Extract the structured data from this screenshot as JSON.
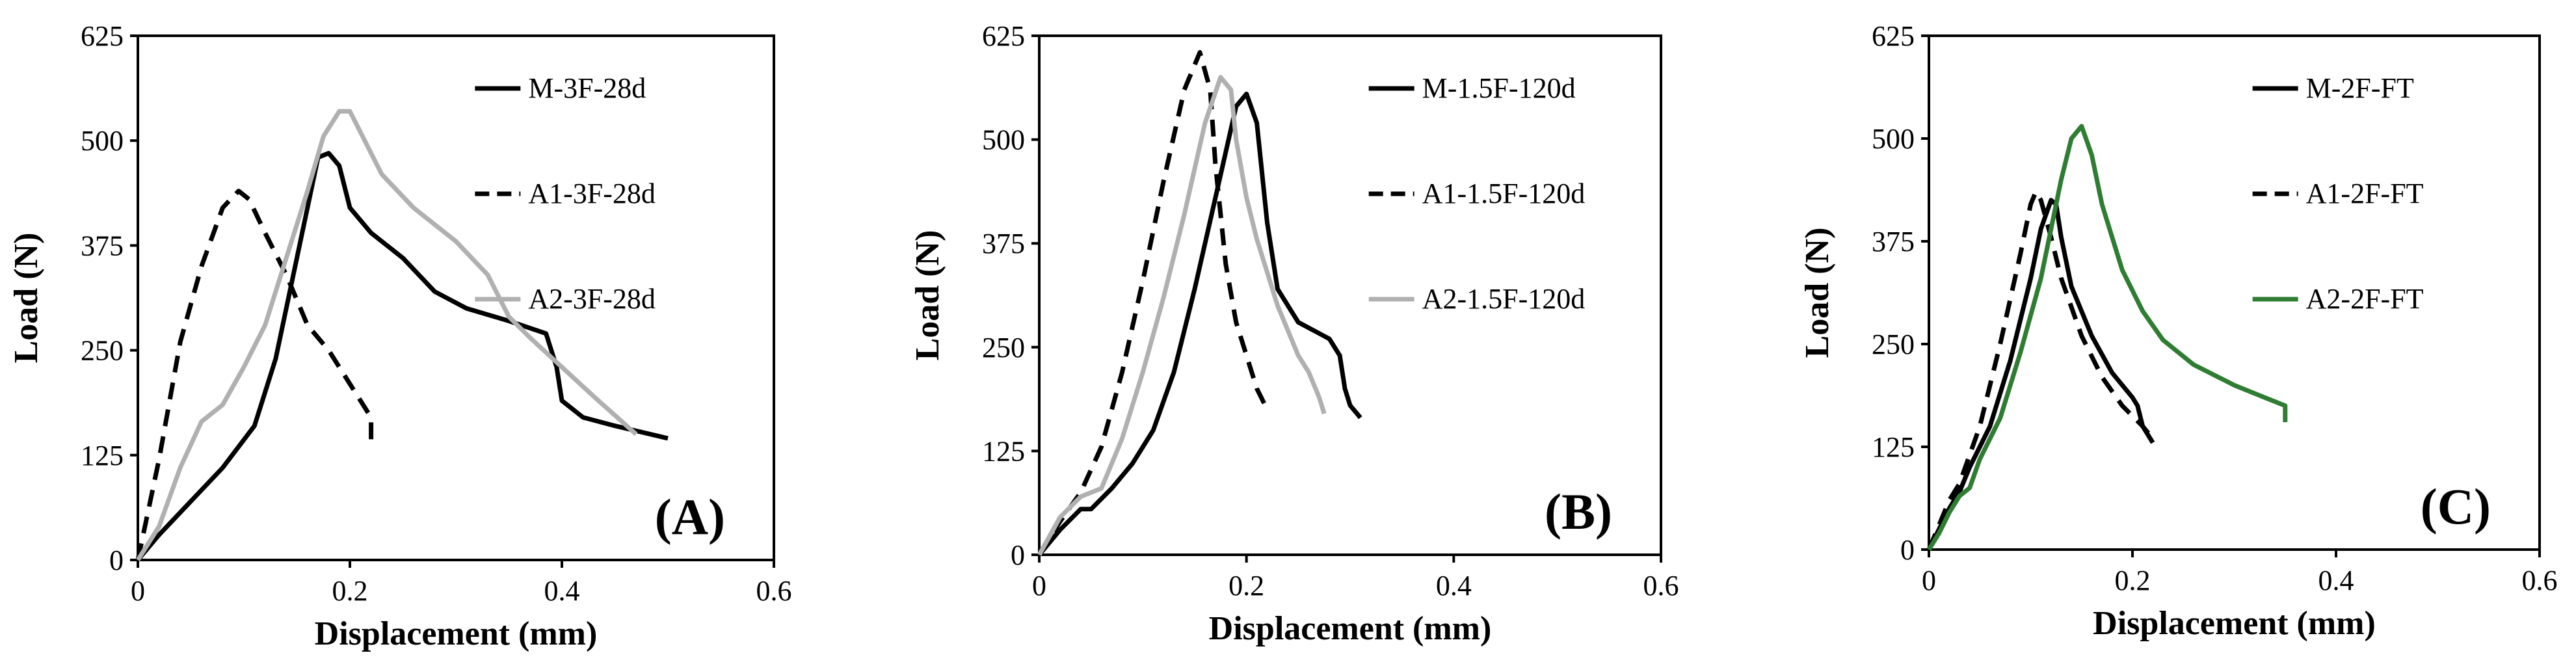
{
  "chart_data": [
    {
      "type": "line",
      "panel_label": "(A)",
      "xlabel": "Displacement (mm)",
      "ylabel": "Load (N)",
      "xlim": [
        0,
        0.6
      ],
      "ylim": [
        0,
        625
      ],
      "xticks": [
        0,
        0.2,
        0.4,
        0.6
      ],
      "xtick_labels": [
        "0",
        "0.2",
        "0.4",
        "0.6"
      ],
      "yticks": [
        0,
        125,
        250,
        375,
        500,
        625
      ],
      "ytick_labels": [
        "0",
        "125",
        "250",
        "375",
        "500",
        "625"
      ],
      "grid": false,
      "legend_position": "top-right",
      "series": [
        {
          "name": "M-3F-28d",
          "color": "#000000",
          "dash": "solid",
          "x": [
            0,
            0.02,
            0.05,
            0.08,
            0.11,
            0.13,
            0.15,
            0.17,
            0.18,
            0.19,
            0.2,
            0.22,
            0.25,
            0.28,
            0.31,
            0.35,
            0.385,
            0.395,
            0.4,
            0.42,
            0.45,
            0.5
          ],
          "y": [
            0,
            30,
            70,
            110,
            160,
            240,
            360,
            480,
            485,
            470,
            420,
            390,
            360,
            320,
            300,
            285,
            270,
            230,
            190,
            170,
            160,
            145
          ]
        },
        {
          "name": "A1-3F-28d",
          "color": "#000000",
          "dash": "dashed",
          "x": [
            0,
            0.02,
            0.04,
            0.06,
            0.08,
            0.095,
            0.105,
            0.12,
            0.14,
            0.16,
            0.18,
            0.2,
            0.21,
            0.22,
            0.22
          ],
          "y": [
            0,
            120,
            260,
            350,
            420,
            440,
            430,
            390,
            340,
            280,
            250,
            210,
            190,
            170,
            135
          ]
        },
        {
          "name": "A2-3F-28d",
          "color": "#b0b0b0",
          "dash": "solid",
          "x": [
            0,
            0.02,
            0.04,
            0.06,
            0.08,
            0.1,
            0.12,
            0.14,
            0.16,
            0.175,
            0.19,
            0.2,
            0.21,
            0.23,
            0.26,
            0.3,
            0.33,
            0.35,
            0.37,
            0.4,
            0.43,
            0.47
          ],
          "y": [
            0,
            40,
            110,
            165,
            185,
            230,
            280,
            360,
            440,
            505,
            535,
            535,
            510,
            460,
            420,
            380,
            340,
            290,
            265,
            230,
            195,
            150
          ]
        }
      ]
    },
    {
      "type": "line",
      "panel_label": "(B)",
      "xlabel": "Displacement (mm)",
      "ylabel": "Load (N)",
      "xlim": [
        0,
        0.6
      ],
      "ylim": [
        0,
        625
      ],
      "xticks": [
        0,
        0.2,
        0.4,
        0.6
      ],
      "xtick_labels": [
        "0",
        "0.2",
        "0.4",
        "0.6"
      ],
      "yticks": [
        0,
        125,
        250,
        375,
        500,
        625
      ],
      "ytick_labels": [
        "0",
        "125",
        "250",
        "375",
        "500",
        "625"
      ],
      "grid": false,
      "legend_position": "top-right",
      "series": [
        {
          "name": "M-1.5F-120d",
          "color": "#000000",
          "dash": "solid",
          "x": [
            0,
            0.02,
            0.04,
            0.05,
            0.07,
            0.09,
            0.11,
            0.13,
            0.15,
            0.17,
            0.19,
            0.2,
            0.21,
            0.22,
            0.23,
            0.25,
            0.28,
            0.29,
            0.295,
            0.3,
            0.31
          ],
          "y": [
            0,
            30,
            55,
            55,
            80,
            110,
            150,
            220,
            320,
            430,
            540,
            555,
            520,
            400,
            320,
            280,
            260,
            240,
            200,
            180,
            165
          ]
        },
        {
          "name": "A1-1.5F-120d",
          "color": "#000000",
          "dash": "dashed",
          "x": [
            0,
            0.02,
            0.04,
            0.06,
            0.08,
            0.1,
            0.12,
            0.14,
            0.155,
            0.165,
            0.17,
            0.18,
            0.19,
            0.2,
            0.21,
            0.22
          ],
          "y": [
            0,
            40,
            75,
            130,
            220,
            330,
            450,
            560,
            605,
            560,
            470,
            350,
            280,
            240,
            200,
            175
          ]
        },
        {
          "name": "A2-1.5F-120d",
          "color": "#b0b0b0",
          "dash": "solid",
          "x": [
            0,
            0.02,
            0.04,
            0.06,
            0.08,
            0.1,
            0.12,
            0.14,
            0.16,
            0.175,
            0.185,
            0.19,
            0.2,
            0.21,
            0.23,
            0.25,
            0.26,
            0.27,
            0.275
          ],
          "y": [
            0,
            45,
            70,
            80,
            140,
            220,
            310,
            410,
            520,
            575,
            560,
            500,
            430,
            380,
            300,
            240,
            220,
            190,
            170
          ]
        }
      ]
    },
    {
      "type": "line",
      "panel_label": "(C)",
      "xlabel": "Displacement (mm)",
      "ylabel": "Load (N)",
      "xlim": [
        0,
        0.6
      ],
      "ylim": [
        0,
        625
      ],
      "xticks": [
        0,
        0.2,
        0.4,
        0.6
      ],
      "xtick_labels": [
        "0",
        "0.2",
        "0.4",
        "0.6"
      ],
      "yticks": [
        0,
        125,
        250,
        375,
        500,
        625
      ],
      "ytick_labels": [
        "0",
        "125",
        "250",
        "375",
        "500",
        "625"
      ],
      "grid": false,
      "legend_position": "top-right",
      "series": [
        {
          "name": "M-2F-FT",
          "color": "#000000",
          "dash": "solid",
          "x": [
            0,
            0.01,
            0.02,
            0.03,
            0.04,
            0.06,
            0.08,
            0.1,
            0.11,
            0.12,
            0.125,
            0.13,
            0.14,
            0.16,
            0.18,
            0.2,
            0.205,
            0.21,
            0.22
          ],
          "y": [
            0,
            25,
            50,
            70,
            100,
            150,
            230,
            330,
            390,
            425,
            420,
            380,
            320,
            260,
            215,
            185,
            175,
            150,
            130
          ]
        },
        {
          "name": "A1-2F-FT",
          "color": "#000000",
          "dash": "dashed",
          "x": [
            0,
            0.01,
            0.02,
            0.03,
            0.05,
            0.07,
            0.09,
            0.1,
            0.105,
            0.11,
            0.12,
            0.13,
            0.15,
            0.17,
            0.19,
            0.21,
            0.22
          ],
          "y": [
            0,
            30,
            60,
            80,
            150,
            250,
            360,
            420,
            435,
            425,
            380,
            330,
            260,
            210,
            175,
            150,
            135
          ]
        },
        {
          "name": "A2-2F-FT",
          "color": "#2e7d32",
          "dash": "solid",
          "x": [
            0,
            0.01,
            0.02,
            0.03,
            0.04,
            0.05,
            0.07,
            0.09,
            0.11,
            0.13,
            0.14,
            0.15,
            0.16,
            0.17,
            0.19,
            0.21,
            0.23,
            0.26,
            0.3,
            0.33,
            0.35,
            0.35
          ],
          "y": [
            0,
            20,
            45,
            65,
            75,
            110,
            160,
            240,
            330,
            450,
            500,
            515,
            480,
            420,
            340,
            290,
            255,
            225,
            200,
            185,
            175,
            155
          ]
        }
      ]
    }
  ]
}
